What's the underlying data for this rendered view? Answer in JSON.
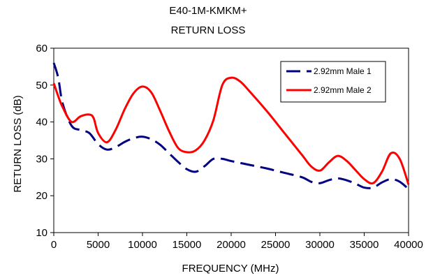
{
  "chart_data": {
    "type": "line",
    "title": "E40-1M-KMKM+",
    "subtitle": "RETURN LOSS",
    "xlabel": "FREQUENCY (MHz)",
    "ylabel": "RETURN LOSS (dB)",
    "xlim": [
      0,
      40000
    ],
    "ylim": [
      10,
      60
    ],
    "xticks": [
      0,
      5000,
      10000,
      15000,
      20000,
      25000,
      30000,
      35000,
      40000
    ],
    "yticks": [
      10,
      20,
      30,
      40,
      50,
      60
    ],
    "grid": false,
    "legend_position": "top-right",
    "series": [
      {
        "name": "2.92mm Male 1",
        "color": "#000080",
        "dash": "dashed",
        "x": [
          0,
          500,
          1000,
          2000,
          3000,
          4000,
          5000,
          6000,
          7000,
          8000,
          9000,
          10000,
          11000,
          12000,
          13000,
          14000,
          15000,
          16000,
          17000,
          18000,
          19000,
          20000,
          22000,
          24000,
          26000,
          28000,
          29000,
          30000,
          31000,
          32000,
          33000,
          34000,
          35000,
          36000,
          37000,
          38000,
          39000,
          40000
        ],
        "y": [
          56,
          52,
          45,
          39,
          37.8,
          37,
          34,
          32.5,
          33.2,
          34.6,
          35.6,
          36,
          35.3,
          33.8,
          31.5,
          29.2,
          27.2,
          26.5,
          28,
          30,
          30,
          29.4,
          28.4,
          27.4,
          26.2,
          25,
          23.8,
          23.4,
          24.2,
          24.7,
          24.2,
          23.3,
          22.2,
          22.2,
          23.6,
          24.5,
          23.8,
          21.8
        ]
      },
      {
        "name": "2.92mm Male 2",
        "color": "#ff0000",
        "dash": "solid",
        "x": [
          0,
          500,
          1000,
          2000,
          3000,
          4000,
          4500,
          5000,
          6000,
          7000,
          8000,
          9000,
          10000,
          11000,
          12000,
          13000,
          14000,
          15000,
          16000,
          17000,
          18000,
          19000,
          20000,
          21000,
          22000,
          24000,
          26000,
          28000,
          29000,
          30000,
          31000,
          32000,
          33000,
          34000,
          35000,
          36000,
          37000,
          38000,
          39000,
          40000
        ],
        "y": [
          50.5,
          47,
          44,
          40,
          41.5,
          42,
          41,
          37,
          34.5,
          38,
          43.5,
          47.8,
          49.6,
          48,
          43,
          37.5,
          33,
          31.8,
          32.3,
          35,
          40.5,
          50,
          52,
          51,
          48.5,
          43,
          37,
          31,
          28,
          26.8,
          29,
          30.8,
          29.5,
          27,
          24.5,
          23.4,
          26.5,
          31.5,
          30,
          23
        ]
      }
    ]
  }
}
